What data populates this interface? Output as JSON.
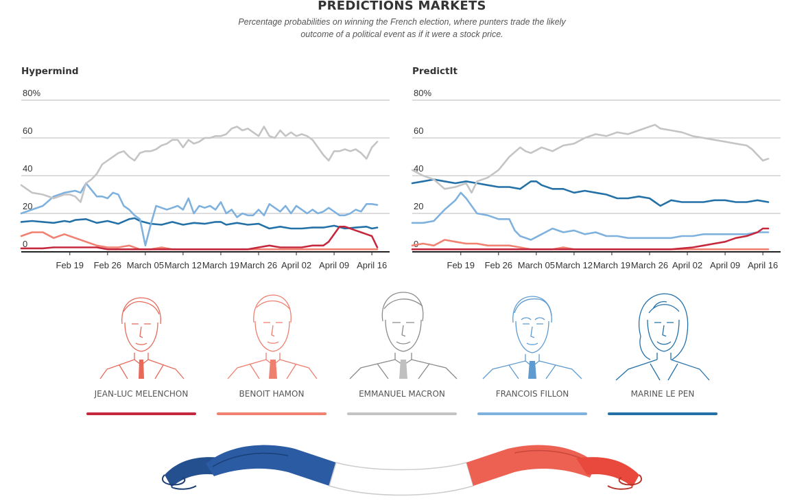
{
  "header": {
    "title": "PREDICTIONS MARKETS",
    "subtitle_line1": "Percentage probabilities on winning the French election, where punters trade the likely",
    "subtitle_line2": "outcome of a political event as if it were a stock price."
  },
  "colors": {
    "melenchon": "#c5283d",
    "hamon": "#f08070",
    "macron": "#c4c4c4",
    "fillon": "#7fb1de",
    "lepen": "#2471a8",
    "grid": "#c8c8c8",
    "baseline": "#222222"
  },
  "candidates": [
    {
      "key": "melenchon",
      "name": "JEAN-LUC MELENCHON",
      "color": "#c5283d"
    },
    {
      "key": "hamon",
      "name": "BENOIT HAMON",
      "color": "#f08070"
    },
    {
      "key": "macron",
      "name": "EMMANUEL MACRON",
      "color": "#c4c4c4"
    },
    {
      "key": "fillon",
      "name": "FRANCOIS FILLON",
      "color": "#7fb1de"
    },
    {
      "key": "lepen",
      "name": "MARINE LE PEN",
      "color": "#2471a8"
    }
  ],
  "chart_data": [
    {
      "type": "line",
      "title": "Hypermind",
      "y_ticks": [
        "80%",
        "60",
        "40",
        "20",
        "0"
      ],
      "y_tick_values": [
        80,
        60,
        40,
        20,
        0
      ],
      "ylim": [
        0,
        80
      ],
      "x_ticks": [
        "Feb 19",
        "Feb 26",
        "March 05",
        "March 12",
        "March 19",
        "March 26",
        "April 02",
        "April 09",
        "April 16"
      ],
      "x_tick_days": [
        7,
        14,
        21,
        28,
        35,
        42,
        49,
        56,
        63
      ],
      "xlim": [
        -2,
        64
      ],
      "x_unit": "days after Feb 12",
      "grid": true,
      "series": [
        {
          "name": "MARINE LE PEN",
          "color": "#2471a8",
          "x": [
            -2,
            0,
            2,
            4,
            6,
            7,
            8,
            10,
            12,
            14,
            16,
            18,
            19,
            20,
            22,
            24,
            26,
            28,
            30,
            32,
            34,
            35,
            36,
            38,
            40,
            42,
            44,
            46,
            48,
            50,
            52,
            54,
            56,
            58,
            60,
            62,
            63,
            64
          ],
          "y": [
            15.5,
            16,
            15.5,
            15,
            16,
            15.5,
            16.5,
            17,
            15,
            16,
            14.5,
            17,
            17.5,
            16,
            14.5,
            14,
            15.5,
            14,
            15,
            14.5,
            15.5,
            15.5,
            14,
            15,
            14,
            14.5,
            12,
            13,
            12,
            12,
            12.5,
            12.5,
            13.5,
            12,
            12.5,
            13,
            12,
            12.5
          ]
        },
        {
          "name": "FRANCOIS FILLON",
          "color": "#7fb1de",
          "x": [
            -2,
            0,
            2,
            4,
            6,
            8,
            9,
            10,
            12,
            13,
            14,
            15,
            16,
            17,
            18,
            19,
            20,
            21,
            22,
            23,
            24,
            25,
            26,
            27,
            28,
            29,
            30,
            31,
            32,
            33,
            34,
            35,
            36,
            37,
            38,
            39,
            40,
            41,
            42,
            43,
            44,
            45,
            46,
            47,
            48,
            49,
            50,
            51,
            52,
            53,
            54,
            55,
            56,
            57,
            58,
            59,
            60,
            61,
            62,
            63,
            64
          ],
          "y": [
            20,
            22,
            24,
            29,
            31,
            32,
            31,
            36,
            29,
            29,
            28,
            31,
            30,
            24,
            22,
            19,
            17,
            3,
            14,
            24,
            23,
            22,
            23,
            24,
            22,
            28,
            20,
            24,
            23,
            24,
            22,
            26,
            20,
            22,
            18,
            20,
            19,
            19,
            22,
            19,
            25,
            23,
            21,
            24,
            20,
            24,
            22,
            20,
            22,
            20,
            21,
            23,
            21,
            19,
            19,
            20,
            22,
            21,
            25,
            25,
            24.5
          ]
        },
        {
          "name": "EMMANUEL MACRON",
          "color": "#c4c4c4",
          "x": [
            -2,
            0,
            2,
            4,
            6,
            7,
            8,
            9,
            10,
            11,
            12,
            13,
            14,
            15,
            16,
            17,
            18,
            19,
            20,
            21,
            22,
            23,
            24,
            25,
            26,
            27,
            28,
            29,
            30,
            31,
            32,
            33,
            34,
            35,
            36,
            37,
            38,
            39,
            40,
            41,
            42,
            43,
            44,
            45,
            46,
            47,
            48,
            49,
            50,
            51,
            52,
            53,
            54,
            55,
            56,
            57,
            58,
            59,
            60,
            61,
            62,
            63,
            64
          ],
          "y": [
            35,
            31,
            30,
            28,
            30,
            30,
            29,
            26,
            36,
            38,
            41,
            46,
            48,
            50,
            52,
            53,
            50,
            48,
            52,
            53,
            53,
            54,
            56,
            57,
            59,
            59,
            55,
            59,
            57,
            58,
            60,
            60,
            61,
            61,
            62,
            65,
            66,
            64,
            65,
            63,
            61,
            66,
            61,
            60,
            64,
            61,
            63,
            61,
            62,
            61,
            59,
            55,
            51,
            48,
            53,
            53,
            54,
            53,
            54,
            52,
            49,
            55,
            58
          ]
        },
        {
          "name": "BENOIT HAMON",
          "color": "#f08070",
          "x": [
            -2,
            0,
            2,
            4,
            6,
            8,
            10,
            12,
            14,
            16,
            18,
            20,
            22,
            24,
            26,
            28,
            30,
            34,
            40,
            50,
            56,
            60,
            64
          ],
          "y": [
            8,
            10,
            10,
            7,
            9,
            7,
            5,
            3,
            2,
            2,
            3,
            1,
            1,
            2,
            1,
            1,
            1,
            1,
            1,
            1,
            1,
            1,
            1
          ]
        },
        {
          "name": "JEAN-LUC MELENCHON",
          "color": "#c5283d",
          "x": [
            -2,
            2,
            4,
            6,
            8,
            10,
            12,
            14,
            16,
            18,
            20,
            22,
            24,
            26,
            28,
            30,
            32,
            34,
            36,
            38,
            40,
            42,
            44,
            46,
            48,
            50,
            52,
            54,
            55,
            56,
            57,
            58,
            59,
            60,
            61,
            62,
            63,
            64
          ],
          "y": [
            1.5,
            1.5,
            2,
            2,
            2,
            2,
            2,
            1,
            1,
            1,
            1,
            1,
            1,
            1,
            1,
            1,
            1,
            1,
            1,
            1,
            1,
            2,
            3,
            2,
            2,
            2,
            3,
            3,
            5,
            9,
            13,
            13,
            12,
            11,
            10,
            9,
            8,
            2
          ]
        }
      ]
    },
    {
      "type": "line",
      "title": "PredictIt",
      "y_ticks": [
        "80%",
        "60",
        "40",
        "20",
        "0"
      ],
      "y_tick_values": [
        80,
        60,
        40,
        20,
        0
      ],
      "ylim": [
        0,
        80
      ],
      "x_ticks": [
        "Feb 19",
        "Feb 26",
        "March 05",
        "March 12",
        "March 19",
        "March 26",
        "April 02",
        "April 09",
        "April 16"
      ],
      "x_tick_days": [
        7,
        14,
        21,
        28,
        35,
        42,
        49,
        56,
        63
      ],
      "xlim": [
        -2,
        64
      ],
      "x_unit": "days after Feb 12",
      "grid": true,
      "series": [
        {
          "name": "MARINE LE PEN",
          "color": "#2471a8",
          "x": [
            -2,
            0,
            2,
            4,
            6,
            8,
            10,
            12,
            14,
            16,
            18,
            20,
            21,
            22,
            24,
            26,
            28,
            30,
            32,
            34,
            36,
            38,
            40,
            42,
            43,
            44,
            46,
            48,
            50,
            52,
            54,
            56,
            58,
            60,
            62,
            64
          ],
          "y": [
            36,
            37,
            38,
            37,
            36,
            37,
            36,
            35,
            34,
            34,
            33,
            37,
            37,
            35,
            33,
            33,
            31,
            32,
            31,
            30,
            28,
            28,
            29,
            28,
            26,
            24,
            27,
            26,
            26,
            26,
            27,
            27,
            26,
            26,
            27,
            26
          ]
        },
        {
          "name": "FRANCOIS FILLON",
          "color": "#7fb1de",
          "x": [
            -2,
            0,
            2,
            4,
            6,
            7,
            8,
            10,
            12,
            14,
            16,
            17,
            18,
            20,
            22,
            24,
            26,
            28,
            30,
            32,
            34,
            36,
            38,
            40,
            42,
            44,
            46,
            48,
            50,
            52,
            54,
            56,
            58,
            60,
            62,
            64
          ],
          "y": [
            15,
            15,
            16,
            22,
            27,
            31,
            28,
            20,
            19,
            17,
            17,
            11,
            8,
            6,
            9,
            12,
            10,
            11,
            9,
            10,
            8,
            8,
            7,
            7,
            7,
            7,
            7,
            8,
            8,
            9,
            9,
            9,
            9,
            9,
            10,
            10
          ]
        },
        {
          "name": "EMMANUEL MACRON",
          "color": "#c4c4c4",
          "x": [
            -2,
            0,
            2,
            4,
            6,
            8,
            9,
            10,
            12,
            14,
            16,
            18,
            19,
            20,
            22,
            24,
            26,
            28,
            30,
            32,
            34,
            36,
            38,
            40,
            42,
            43,
            44,
            46,
            48,
            50,
            52,
            54,
            56,
            58,
            60,
            61,
            62,
            63,
            64
          ],
          "y": [
            43,
            40,
            38,
            33,
            34,
            36,
            31,
            37,
            39,
            43,
            50,
            55,
            53,
            52,
            55,
            53,
            56,
            57,
            60,
            62,
            61,
            63,
            62,
            64,
            66,
            67,
            65,
            64,
            63,
            61,
            60,
            59,
            58,
            57,
            56,
            54,
            51,
            48,
            49
          ]
        },
        {
          "name": "BENOIT HAMON",
          "color": "#f08070",
          "x": [
            -2,
            0,
            2,
            4,
            6,
            8,
            10,
            12,
            14,
            16,
            18,
            20,
            22,
            24,
            26,
            28,
            30,
            34,
            40,
            50,
            56,
            60,
            64
          ],
          "y": [
            3,
            4,
            3,
            6,
            5,
            4,
            4,
            3,
            3,
            3,
            2,
            1,
            1,
            1,
            2,
            1,
            1,
            1,
            1,
            1,
            1,
            1,
            1
          ]
        },
        {
          "name": "JEAN-LUC MELENCHON",
          "color": "#c5283d",
          "x": [
            -2,
            10,
            20,
            30,
            40,
            46,
            48,
            50,
            52,
            54,
            56,
            58,
            60,
            61,
            62,
            63,
            64
          ],
          "y": [
            1,
            1,
            1,
            1,
            1,
            1,
            1.5,
            2,
            3,
            4,
            5,
            7,
            8,
            9,
            10,
            12,
            12
          ]
        }
      ]
    }
  ]
}
